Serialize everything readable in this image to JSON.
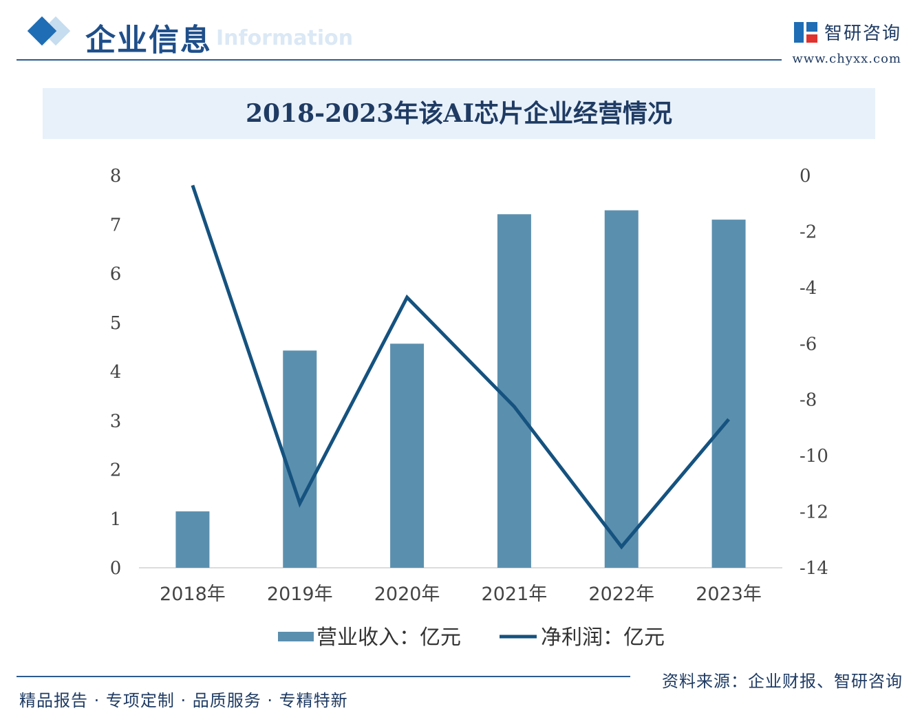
{
  "header": {
    "section_title": "企业信息",
    "section_en": "Information",
    "brand_name": "智研咨询",
    "brand_url": "www.chyxx.com"
  },
  "chart_data": {
    "type": "bar+line",
    "title": "2018-2023年该AI芯片企业经营情况",
    "categories": [
      "2018年",
      "2019年",
      "2020年",
      "2021年",
      "2022年",
      "2023年"
    ],
    "series": [
      {
        "name": "营业收入：亿元",
        "type": "bar",
        "axis": "left",
        "values": [
          1.15,
          4.43,
          4.57,
          7.21,
          7.29,
          7.1
        ]
      },
      {
        "name": "净利润：亿元",
        "type": "line",
        "axis": "right",
        "values": [
          -0.35,
          -11.7,
          -4.35,
          -8.25,
          -13.25,
          -8.7
        ]
      }
    ],
    "y_left": {
      "min": 0,
      "max": 8,
      "ticks": [
        "0",
        "1",
        "2",
        "3",
        "4",
        "5",
        "6",
        "7",
        "8"
      ]
    },
    "y_right": {
      "min": -14,
      "max": 0,
      "ticks": [
        "0",
        "-2",
        "-4",
        "-6",
        "-8",
        "-10",
        "-12",
        "-14"
      ]
    },
    "legend_position": "bottom",
    "grid": false,
    "colors": {
      "bar": "#5b8fae",
      "line": "#15527f"
    }
  },
  "footer": {
    "source": "资料来源：企业财报、智研咨询",
    "slogan": "精品报告 · 专项定制 · 品质服务 · 专精特新"
  }
}
